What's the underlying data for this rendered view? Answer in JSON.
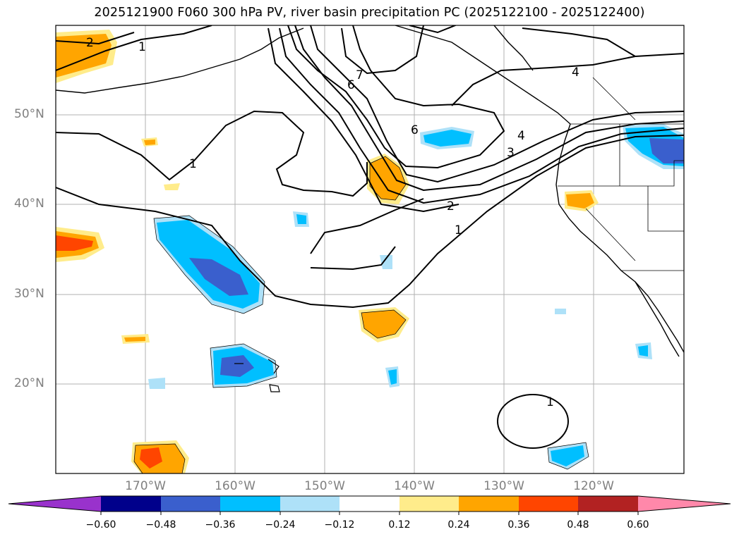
{
  "title": "2025121900 F060 300 hPa PV, river basin precipitation PC (2025122100 - 2025122400)",
  "map": {
    "lat_labels": [
      "50°N",
      "40°N",
      "30°N",
      "20°N"
    ],
    "lon_labels": [
      "170°W",
      "160°W",
      "150°W",
      "140°W",
      "130°W",
      "120°W"
    ],
    "contour_labels": [
      "2",
      "1",
      "1",
      "7",
      "6",
      "6",
      "4",
      "4",
      "3",
      "2",
      "1",
      "1"
    ]
  },
  "colorbar": {
    "ticks": [
      "−0.60",
      "−0.48",
      "−0.36",
      "−0.24",
      "−0.12",
      "0.12",
      "0.24",
      "0.36",
      "0.48",
      "0.60"
    ],
    "colors": [
      "#9932CC",
      "#00008B",
      "#3A5FCD",
      "#00BFFF",
      "#AEE1F8",
      "#FFFFFF",
      "#FFEC8B",
      "#FFA500",
      "#FF4500",
      "#B22222",
      "#FF88AA"
    ]
  }
}
